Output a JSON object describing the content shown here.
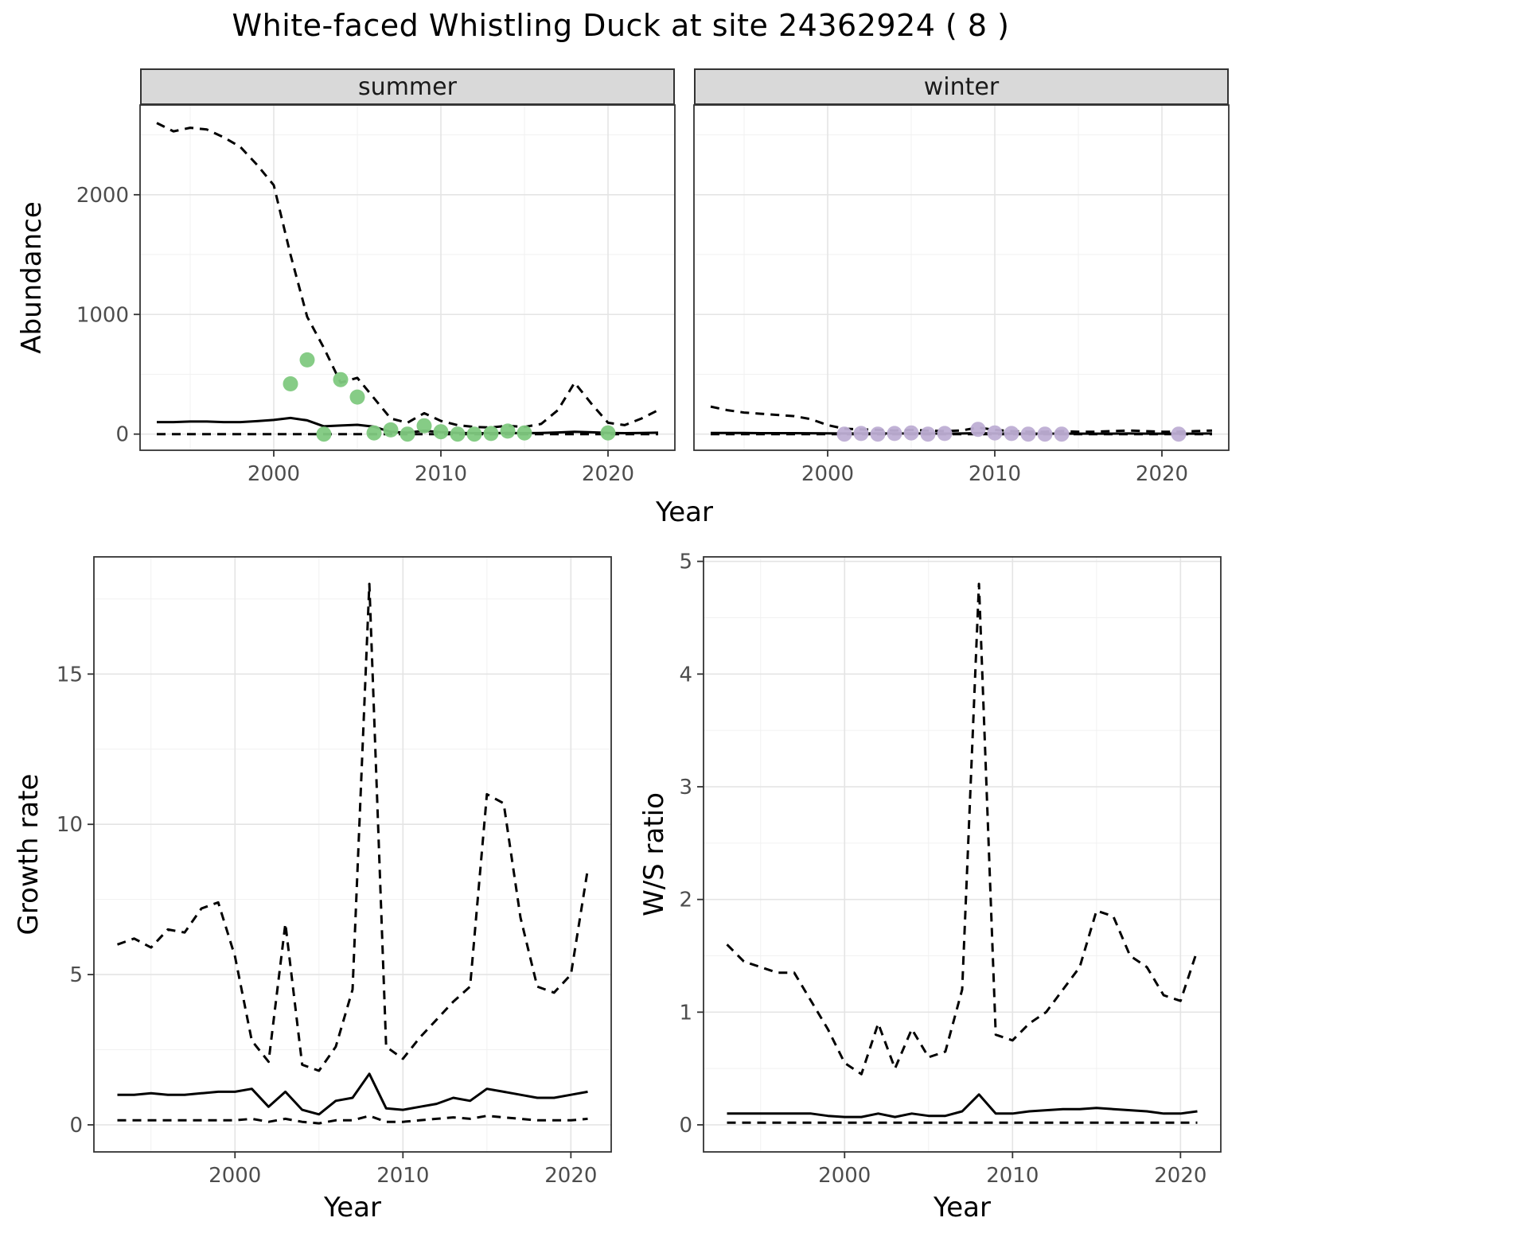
{
  "title": "White-faced Whistling Duck at site 24362924 ( 8 )",
  "style": {
    "summer_point_color": "#7FC97F",
    "winter_point_color": "#BEAED4",
    "line_color": "#000000",
    "grid_major": "#e4e4e4",
    "grid_minor": "#f1f1f1",
    "panel_border": "#333333",
    "strip_bg": "#d9d9d9",
    "strip_text": "#1a1a1a",
    "tick_color": "#333333",
    "tick_label_color": "#4d4d4d",
    "dash_pattern": "11 8",
    "line_width": 3,
    "point_radius": 9.5,
    "tick_font_px": 26
  },
  "chart_data": [
    {
      "id": "abundance-summer",
      "type": "line",
      "facet_label": "summer",
      "xlabel": "Year",
      "ylabel": "Abundance",
      "xlim": [
        1992,
        2024
      ],
      "ylim": [
        -135,
        2750
      ],
      "xticks": [
        2000,
        2010,
        2020
      ],
      "yticks": [
        0,
        1000,
        2000
      ],
      "x": [
        1993,
        1994,
        1995,
        1996,
        1997,
        1998,
        1999,
        2000,
        2001,
        2002,
        2003,
        2004,
        2005,
        2006,
        2007,
        2008,
        2009,
        2010,
        2011,
        2012,
        2013,
        2014,
        2015,
        2016,
        2017,
        2018,
        2019,
        2020,
        2021,
        2022,
        2023
      ],
      "series": [
        {
          "name": "upper-ci",
          "style": "dashed",
          "y": [
            2600,
            2530,
            2560,
            2545,
            2480,
            2400,
            2250,
            2080,
            1500,
            980,
            720,
            430,
            470,
            300,
            130,
            95,
            175,
            110,
            75,
            60,
            55,
            70,
            60,
            85,
            200,
            430,
            255,
            95,
            75,
            130,
            200
          ]
        },
        {
          "name": "median",
          "style": "solid",
          "y": [
            100,
            100,
            105,
            105,
            100,
            100,
            108,
            118,
            135,
            115,
            65,
            72,
            78,
            62,
            18,
            12,
            28,
            16,
            10,
            8,
            8,
            10,
            8,
            10,
            14,
            20,
            15,
            10,
            8,
            10,
            12
          ]
        },
        {
          "name": "lower-ci",
          "style": "dashed",
          "y": [
            0,
            0,
            0,
            0,
            0,
            0,
            0,
            0,
            0,
            0,
            0,
            0,
            0,
            0,
            0,
            0,
            0,
            0,
            0,
            0,
            0,
            0,
            0,
            0,
            0,
            0,
            0,
            0,
            0,
            0,
            0
          ]
        }
      ],
      "points": {
        "name": "observed-summer",
        "color": "#7FC97F",
        "x": [
          2001,
          2002,
          2003,
          2004,
          2005,
          2006,
          2007,
          2008,
          2009,
          2010,
          2011,
          2012,
          2013,
          2014,
          2015,
          2020
        ],
        "y": [
          420,
          620,
          0,
          455,
          310,
          10,
          35,
          0,
          70,
          20,
          0,
          0,
          5,
          25,
          10,
          10
        ]
      }
    },
    {
      "id": "abundance-winter",
      "type": "line",
      "facet_label": "winter",
      "xlabel": "Year",
      "ylabel": "Abundance",
      "xlim": [
        1992,
        2024
      ],
      "ylim": [
        -135,
        2750
      ],
      "xticks": [
        2000,
        2010,
        2020
      ],
      "yticks": [
        0,
        1000,
        2000
      ],
      "x": [
        1993,
        1994,
        1995,
        1996,
        1997,
        1998,
        1999,
        2000,
        2001,
        2002,
        2003,
        2004,
        2005,
        2006,
        2007,
        2008,
        2009,
        2010,
        2011,
        2012,
        2013,
        2014,
        2015,
        2016,
        2017,
        2018,
        2019,
        2020,
        2021,
        2022,
        2023
      ],
      "series": [
        {
          "name": "upper-ci",
          "style": "dashed",
          "y": [
            230,
            200,
            180,
            170,
            160,
            150,
            125,
            75,
            45,
            40,
            35,
            30,
            35,
            30,
            25,
            30,
            55,
            35,
            25,
            20,
            20,
            25,
            20,
            20,
            25,
            30,
            25,
            20,
            20,
            25,
            30
          ]
        },
        {
          "name": "median",
          "style": "solid",
          "y": [
            10,
            9,
            9,
            8,
            8,
            8,
            7,
            6,
            5,
            5,
            5,
            5,
            5,
            5,
            4,
            5,
            8,
            5,
            4,
            4,
            4,
            4,
            4,
            4,
            4,
            5,
            4,
            4,
            4,
            4,
            5
          ]
        },
        {
          "name": "lower-ci",
          "style": "dashed",
          "y": [
            0,
            0,
            0,
            0,
            0,
            0,
            0,
            0,
            0,
            0,
            0,
            0,
            0,
            0,
            0,
            0,
            0,
            0,
            0,
            0,
            0,
            0,
            0,
            0,
            0,
            0,
            0,
            0,
            0,
            0,
            0
          ]
        }
      ],
      "points": {
        "name": "observed-winter",
        "color": "#BEAED4",
        "x": [
          2001,
          2002,
          2003,
          2004,
          2005,
          2006,
          2007,
          2009,
          2010,
          2011,
          2012,
          2013,
          2014,
          2021
        ],
        "y": [
          0,
          5,
          0,
          5,
          10,
          0,
          5,
          40,
          10,
          5,
          0,
          0,
          0,
          0
        ]
      }
    },
    {
      "id": "growth-rate",
      "type": "line",
      "facet_label": "",
      "xlabel": "Year",
      "ylabel": "Growth rate",
      "xlim": [
        1991.6,
        2022.4
      ],
      "ylim": [
        -0.9,
        18.9
      ],
      "xticks": [
        2000,
        2010,
        2020
      ],
      "yticks": [
        0,
        5,
        10,
        15
      ],
      "x": [
        1993,
        1994,
        1995,
        1996,
        1997,
        1998,
        1999,
        2000,
        2001,
        2002,
        2003,
        2004,
        2005,
        2006,
        2007,
        2008,
        2009,
        2010,
        2011,
        2012,
        2013,
        2014,
        2015,
        2016,
        2017,
        2018,
        2019,
        2020,
        2021
      ],
      "series": [
        {
          "name": "upper-ci",
          "style": "dashed",
          "y": [
            6.0,
            6.2,
            5.9,
            6.5,
            6.4,
            7.2,
            7.4,
            5.6,
            2.8,
            2.1,
            6.7,
            2.0,
            1.8,
            2.6,
            4.5,
            18.0,
            2.6,
            2.2,
            2.9,
            3.5,
            4.1,
            4.6,
            11.0,
            10.7,
            6.9,
            4.6,
            4.4,
            5.0,
            8.5
          ]
        },
        {
          "name": "median",
          "style": "solid",
          "y": [
            1.0,
            1.0,
            1.05,
            1.0,
            1.0,
            1.05,
            1.1,
            1.1,
            1.2,
            0.6,
            1.1,
            0.5,
            0.35,
            0.8,
            0.9,
            1.7,
            0.55,
            0.5,
            0.6,
            0.7,
            0.9,
            0.8,
            1.2,
            1.1,
            1.0,
            0.9,
            0.9,
            1.0,
            1.1
          ]
        },
        {
          "name": "lower-ci",
          "style": "dashed",
          "y": [
            0.15,
            0.15,
            0.15,
            0.15,
            0.15,
            0.15,
            0.15,
            0.15,
            0.2,
            0.1,
            0.2,
            0.1,
            0.05,
            0.15,
            0.15,
            0.3,
            0.1,
            0.1,
            0.15,
            0.2,
            0.25,
            0.2,
            0.3,
            0.25,
            0.2,
            0.15,
            0.15,
            0.15,
            0.2
          ]
        }
      ],
      "points": null
    },
    {
      "id": "ws-ratio",
      "type": "line",
      "facet_label": "",
      "xlabel": "Year",
      "ylabel": "W/S ratio",
      "xlim": [
        1991.6,
        2022.4
      ],
      "ylim": [
        -0.24,
        5.04
      ],
      "xticks": [
        2000,
        2010,
        2020
      ],
      "yticks": [
        0,
        1,
        2,
        3,
        4,
        5
      ],
      "x": [
        1993,
        1994,
        1995,
        1996,
        1997,
        1998,
        1999,
        2000,
        2001,
        2002,
        2003,
        2004,
        2005,
        2006,
        2007,
        2008,
        2009,
        2010,
        2011,
        2012,
        2013,
        2014,
        2015,
        2016,
        2017,
        2018,
        2019,
        2020,
        2021
      ],
      "series": [
        {
          "name": "upper-ci",
          "style": "dashed",
          "y": [
            1.6,
            1.45,
            1.4,
            1.35,
            1.35,
            1.1,
            0.85,
            0.55,
            0.45,
            0.9,
            0.5,
            0.85,
            0.6,
            0.65,
            1.2,
            4.8,
            0.8,
            0.75,
            0.9,
            1.0,
            1.2,
            1.4,
            1.9,
            1.85,
            1.5,
            1.4,
            1.15,
            1.1,
            1.55
          ]
        },
        {
          "name": "median",
          "style": "solid",
          "y": [
            0.1,
            0.1,
            0.1,
            0.1,
            0.1,
            0.1,
            0.08,
            0.07,
            0.07,
            0.1,
            0.07,
            0.1,
            0.08,
            0.08,
            0.12,
            0.27,
            0.1,
            0.1,
            0.12,
            0.13,
            0.14,
            0.14,
            0.15,
            0.14,
            0.13,
            0.12,
            0.1,
            0.1,
            0.12
          ]
        },
        {
          "name": "lower-ci",
          "style": "dashed",
          "y": [
            0.02,
            0.02,
            0.02,
            0.02,
            0.02,
            0.02,
            0.02,
            0.02,
            0.02,
            0.02,
            0.02,
            0.02,
            0.02,
            0.02,
            0.02,
            0.02,
            0.02,
            0.02,
            0.02,
            0.02,
            0.02,
            0.02,
            0.02,
            0.02,
            0.02,
            0.02,
            0.02,
            0.02,
            0.02
          ]
        }
      ],
      "points": null
    }
  ]
}
